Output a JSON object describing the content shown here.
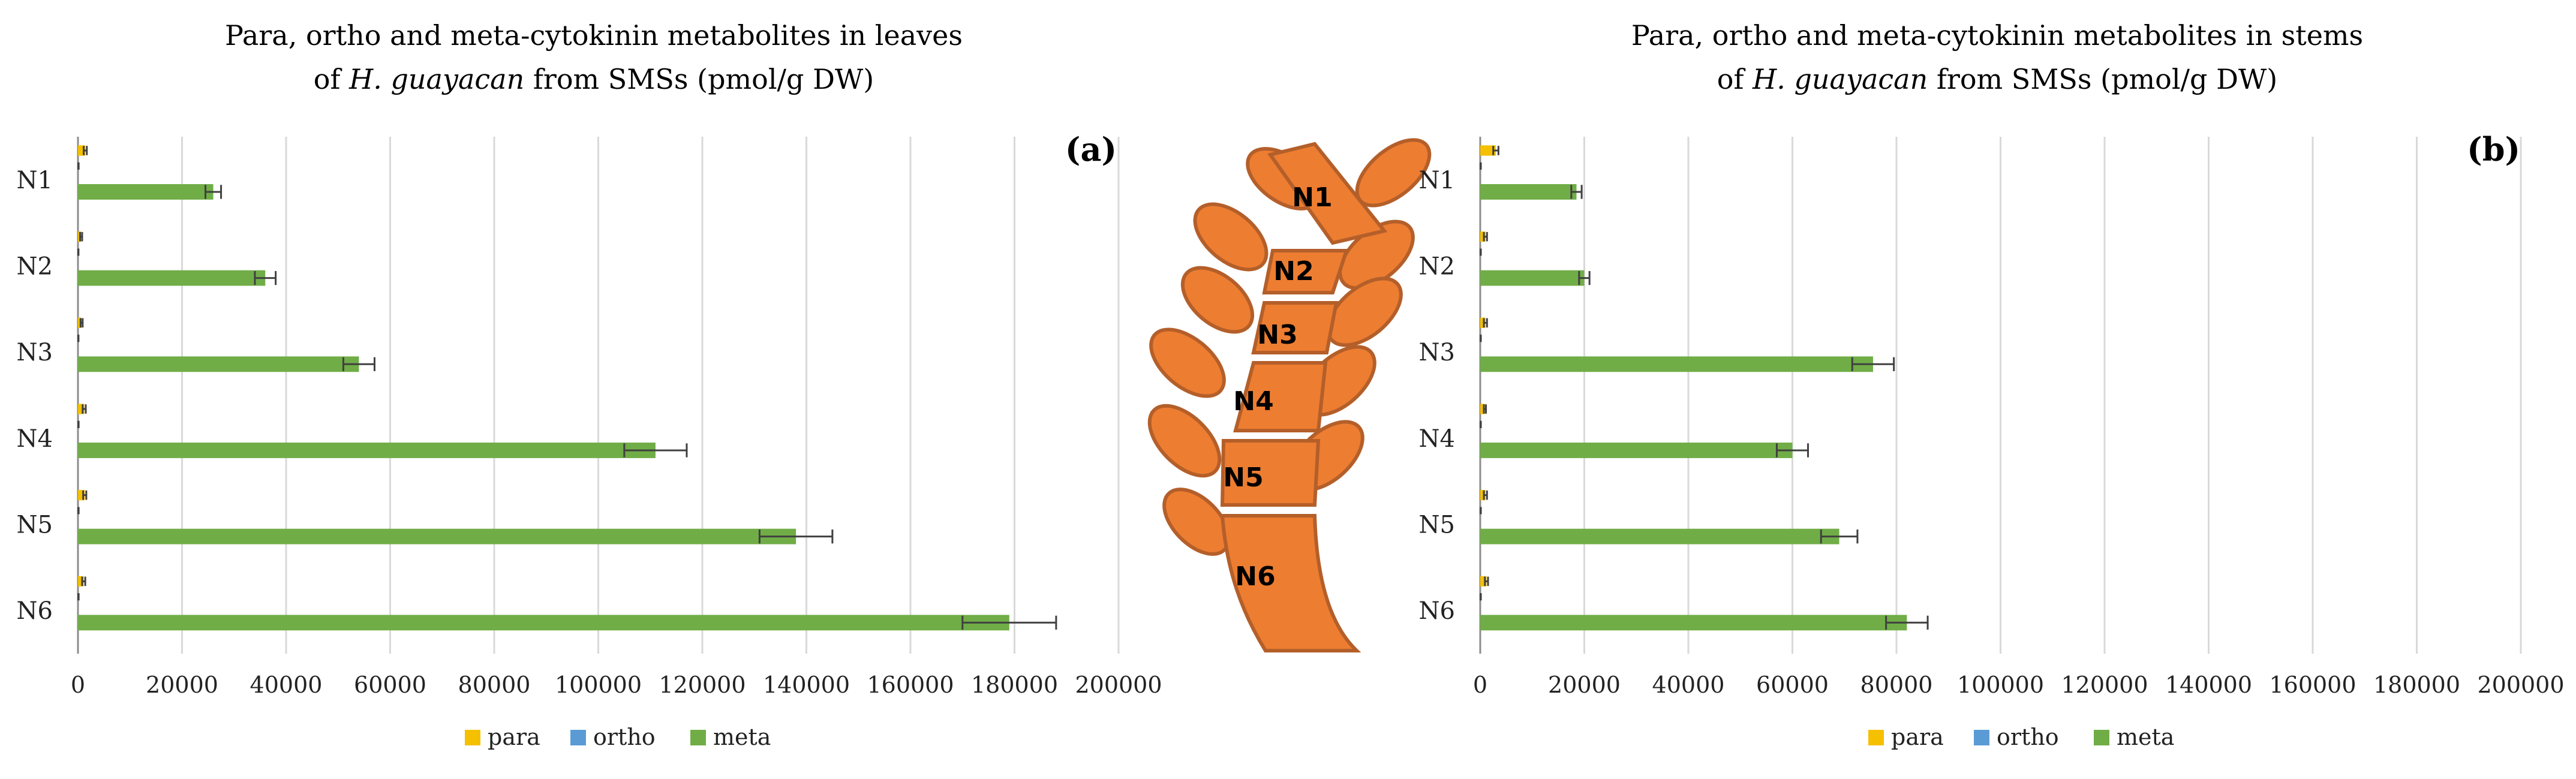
{
  "chart_data": [
    {
      "type": "bar",
      "orientation": "horizontal",
      "panel_label": "(a)",
      "title_line1": "Para, ortho and meta-cytokinin metabolites in leaves",
      "title_line2_pre": "of ",
      "title_line2_italic": "H. guayacan",
      "title_line2_post": " from SMSs (pmol/g DW)",
      "categories": [
        "N1",
        "N2",
        "N3",
        "N4",
        "N5",
        "N6"
      ],
      "x_ticks": [
        "0",
        "20000",
        "40000",
        "60000",
        "80000",
        "100000",
        "120000",
        "140000",
        "160000",
        "180000",
        "200000"
      ],
      "xlim": [
        0,
        200000
      ],
      "grid": true,
      "legend_position": "bottom",
      "series": [
        {
          "name": "para",
          "color": "#f5c000",
          "values": [
            1400,
            600,
            700,
            1200,
            1300,
            1100
          ],
          "errors": [
            300,
            200,
            200,
            300,
            300,
            300
          ]
        },
        {
          "name": "ortho",
          "color": "#5b9bd5",
          "values": [
            100,
            80,
            80,
            100,
            100,
            100
          ],
          "errors": [
            30,
            20,
            20,
            30,
            30,
            30
          ]
        },
        {
          "name": "meta",
          "color": "#70ad47",
          "values": [
            26000,
            36000,
            54000,
            111000,
            138000,
            179000
          ],
          "errors": [
            1500,
            2000,
            3000,
            6000,
            7000,
            9000
          ]
        }
      ]
    },
    {
      "type": "bar",
      "orientation": "horizontal",
      "panel_label": "(b)",
      "title_line1": "Para, ortho and meta-cytokinin metabolites in stems",
      "title_line2_pre": "of ",
      "title_line2_italic": "H. guayacan",
      "title_line2_post": " from SMSs (pmol/g DW)",
      "categories": [
        "N1",
        "N2",
        "N3",
        "N4",
        "N5",
        "N6"
      ],
      "x_ticks": [
        "0",
        "20000",
        "40000",
        "60000",
        "80000",
        "100000",
        "120000",
        "140000",
        "160000",
        "180000",
        "200000"
      ],
      "xlim": [
        0,
        200000
      ],
      "grid": true,
      "legend_position": "bottom",
      "series": [
        {
          "name": "para",
          "color": "#f5c000",
          "values": [
            3000,
            1000,
            1000,
            900,
            1000,
            1200
          ],
          "errors": [
            500,
            300,
            300,
            200,
            300,
            300
          ]
        },
        {
          "name": "ortho",
          "color": "#5b9bd5",
          "values": [
            100,
            100,
            100,
            100,
            100,
            100
          ],
          "errors": [
            20,
            20,
            20,
            20,
            20,
            20
          ]
        },
        {
          "name": "meta",
          "color": "#70ad47",
          "values": [
            18500,
            20000,
            75500,
            60000,
            69000,
            82000
          ],
          "errors": [
            1000,
            1000,
            4000,
            3000,
            3500,
            4000
          ]
        }
      ]
    }
  ],
  "diagram": {
    "node_labels": [
      "N1",
      "N2",
      "N3",
      "N4",
      "N5",
      "N6"
    ],
    "stem_color": "#ed7d31",
    "stem_edge": "#b45f2a"
  }
}
